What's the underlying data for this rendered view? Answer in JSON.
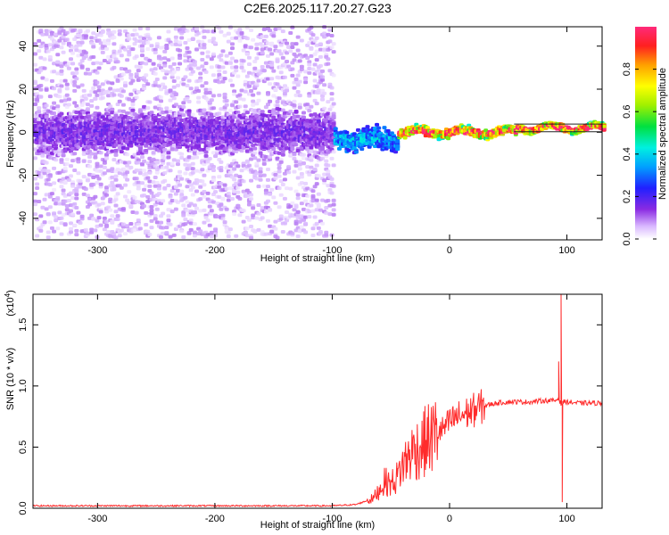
{
  "colors": {
    "signal": "#ff2b2b",
    "spectrogram_low": "#a046ff",
    "spectrogram_mid": "#3030ff",
    "spectrogram_high": "#00e050",
    "spectrogram_peak": "#ff2060"
  },
  "chart_data": [
    {
      "type": "heatmap",
      "title": "C2E6.2025.117.20.27.G23",
      "xlabel": "Height of straight line (km)",
      "ylabel": "Frequency (Hz)",
      "xlim": [
        -355,
        130
      ],
      "ylim": [
        -50,
        49
      ],
      "x_ticks": [
        -300,
        -200,
        -100,
        0,
        100
      ],
      "x_tick_labels": [
        "-300",
        "-200",
        "-100",
        "0",
        "100"
      ],
      "y_ticks": [
        -40,
        -20,
        0,
        20,
        40
      ],
      "y_tick_labels": [
        "-40",
        "-20",
        "0",
        "20",
        "40"
      ],
      "colorbar": {
        "label": "Normalized spectral amplitude",
        "range": [
          0,
          1
        ],
        "ticks": [
          0.0,
          0.2,
          0.4,
          0.6,
          0.8
        ],
        "tick_labels": [
          "0.0",
          "0.2",
          "0.4",
          "0.6",
          "0.8"
        ]
      },
      "bands": [
        {
          "x_from": -355,
          "x_to": -100,
          "center_freq": 0,
          "half_width": 8,
          "amplitude": 0.15,
          "noise_spread": 49
        },
        {
          "x_from": -100,
          "x_to": -45,
          "center_freq": -3,
          "half_width": 5,
          "amplitude": 0.35
        },
        {
          "x_from": -45,
          "x_to": 55,
          "center_freq": 0,
          "half_width": 2,
          "amplitude": 0.9
        },
        {
          "x_from": 55,
          "x_to": 130,
          "center_freq": 2,
          "half_width": 1.5,
          "amplitude": 0.95
        }
      ],
      "grid": false
    },
    {
      "type": "line",
      "xlabel": "Height of straight line (km)",
      "ylabel": "SNR (10 * v/v)",
      "y_scale_label": "(x10",
      "y_scale_exp": "4",
      "y_scale_close": ")",
      "xlim": [
        -355,
        130
      ],
      "ylim": [
        0,
        1.75
      ],
      "x_ticks": [
        -300,
        -200,
        -100,
        0,
        100
      ],
      "x_tick_labels": [
        "-300",
        "-200",
        "-100",
        "0",
        "100"
      ],
      "y_ticks": [
        0.0,
        0.5,
        1.0,
        1.5
      ],
      "y_tick_labels": [
        "0.0",
        "0.5",
        "1.0",
        "1.5"
      ],
      "series": [
        {
          "x": [
            -355,
            -300,
            -200,
            -120,
            -100,
            -80,
            -65,
            -60,
            -55,
            -50,
            -45,
            -40,
            -35,
            -30,
            -25,
            -20,
            -15,
            -10,
            -5,
            0,
            5,
            10,
            15,
            20,
            30,
            40,
            50,
            60,
            70,
            80,
            85,
            90,
            93,
            95,
            97,
            100,
            110,
            120,
            130
          ],
          "y": [
            0.02,
            0.02,
            0.02,
            0.02,
            0.02,
            0.03,
            0.08,
            0.15,
            0.22,
            0.2,
            0.25,
            0.35,
            0.42,
            0.48,
            0.5,
            0.55,
            0.58,
            0.62,
            0.65,
            0.7,
            0.74,
            0.76,
            0.78,
            0.8,
            0.84,
            0.86,
            0.87,
            0.87,
            0.87,
            0.88,
            0.88,
            0.88,
            0.9,
            0.85,
            0.87,
            0.87,
            0.86,
            0.86,
            0.86
          ],
          "spikes": [
            {
              "x": 93,
              "y": 1.2
            },
            {
              "x": 95,
              "y": 1.75
            },
            {
              "x": 96,
              "y": 0.05
            }
          ]
        }
      ],
      "grid": false
    }
  ]
}
